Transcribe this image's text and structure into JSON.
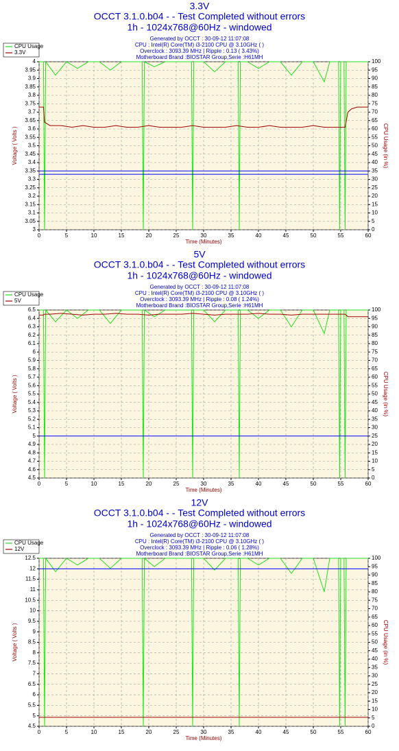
{
  "chart_data": [
    {
      "type": "line",
      "heading": "3.3V",
      "title": "OCCT 3.1.0.b04 -  - Test Completed without errors",
      "subtitle": "1h - 1024x768@60Hz - windowed",
      "info": [
        "Generated by OCCT : 30-09-12 11:07:08",
        "CPU : Intel(R) Core(TM) i3-2100 CPU @ 3.10GHz (  )",
        "Overclock : 3093.39 MHz | Ripple : 0.13 ( 3.43%)",
        "Motherboard Brand :BIOSTAR Group,Serie :H61MH"
      ],
      "xlabel": "Time (Minutes)",
      "ylabel": "Voltage ( Volts )",
      "y2label": "CPU Usage (in %)",
      "xlim": [
        0,
        60
      ],
      "xticks": [
        0,
        5,
        10,
        15,
        20,
        25,
        30,
        35,
        40,
        45,
        50,
        55,
        60
      ],
      "ylim": [
        3,
        4
      ],
      "yticks": [
        3,
        3.05,
        3.1,
        3.15,
        3.2,
        3.25,
        3.3,
        3.35,
        3.4,
        3.45,
        3.5,
        3.55,
        3.6,
        3.65,
        3.7,
        3.75,
        3.8,
        3.85,
        3.9,
        3.95,
        4
      ],
      "y2lim": [
        0,
        100
      ],
      "y2ticks": [
        0,
        5,
        10,
        15,
        20,
        25,
        30,
        35,
        40,
        45,
        50,
        55,
        60,
        65,
        70,
        75,
        80,
        85,
        90,
        95,
        100
      ],
      "grid": true,
      "hlines": [
        3.35,
        3.33
      ],
      "hline_color": "#0000ff",
      "series": [
        {
          "name": "CPU Usage",
          "color": "#22e022",
          "axis": "y2",
          "x": [
            0,
            0.8,
            1,
            1.2,
            3,
            5,
            7,
            9,
            11,
            13,
            15,
            17,
            18.8,
            19,
            19.2,
            21,
            23,
            25,
            27.8,
            28,
            28.2,
            30,
            32,
            34,
            36.3,
            36.5,
            36.7,
            38,
            40,
            42,
            44,
            46,
            48,
            50,
            52,
            53,
            54.6,
            54.8,
            55,
            55.6,
            55.8,
            56,
            56.2,
            58,
            60
          ],
          "values": [
            100,
            100,
            0,
            100,
            92,
            100,
            96,
            100,
            100,
            95,
            100,
            100,
            100,
            0,
            100,
            97,
            100,
            100,
            100,
            0,
            100,
            100,
            94,
            100,
            100,
            0,
            100,
            100,
            96,
            100,
            100,
            92,
            100,
            100,
            88,
            100,
            100,
            0,
            100,
            100,
            0,
            100,
            100,
            100,
            100
          ]
        },
        {
          "name": "3.3V",
          "color": "#a00000",
          "x": [
            0,
            0.8,
            1,
            2,
            4,
            6,
            8,
            10,
            12,
            14,
            16,
            18,
            20,
            22,
            24,
            26,
            28,
            30,
            32,
            34,
            36,
            38,
            40,
            42,
            44,
            46,
            48,
            50,
            52,
            54,
            55.8,
            56.3,
            57,
            58,
            60
          ],
          "values": [
            3.73,
            3.73,
            3.64,
            3.62,
            3.62,
            3.61,
            3.62,
            3.61,
            3.61,
            3.62,
            3.61,
            3.61,
            3.62,
            3.61,
            3.61,
            3.61,
            3.62,
            3.61,
            3.61,
            3.61,
            3.62,
            3.61,
            3.61,
            3.62,
            3.61,
            3.61,
            3.61,
            3.62,
            3.61,
            3.61,
            3.61,
            3.7,
            3.72,
            3.73,
            3.73
          ]
        }
      ]
    },
    {
      "type": "line",
      "heading": "5V",
      "title": "OCCT 3.1.0.b04 -  - Test Completed without errors",
      "subtitle": "1h - 1024x768@60Hz - windowed",
      "info": [
        "Generated by OCCT : 30-09-12 11:07:08",
        "CPU : Intel(R) Core(TM) i3-2100 CPU @ 3.10GHz (  )",
        "Overclock : 3093.39 MHz | Ripple : 0.08 ( 1.24%)",
        "Motherboard Brand :BIOSTAR Group,Serie :H61MH"
      ],
      "xlabel": "Time (Minutes)",
      "ylabel": "Voltage ( Volts )",
      "y2label": "CPU Usage (in %)",
      "xlim": [
        0,
        60
      ],
      "xticks": [
        0,
        5,
        10,
        15,
        20,
        25,
        30,
        35,
        40,
        45,
        50,
        55,
        60
      ],
      "ylim": [
        4.5,
        6.5
      ],
      "yticks": [
        4.5,
        4.6,
        4.7,
        4.8,
        4.9,
        5,
        5.1,
        5.2,
        5.3,
        5.4,
        5.5,
        5.6,
        5.7,
        5.8,
        5.9,
        6,
        6.1,
        6.2,
        6.3,
        6.4,
        6.5
      ],
      "y2lim": [
        0,
        100
      ],
      "y2ticks": [
        0,
        5,
        10,
        15,
        20,
        25,
        30,
        35,
        40,
        45,
        50,
        55,
        60,
        65,
        70,
        75,
        80,
        85,
        90,
        95,
        100
      ],
      "grid": true,
      "hlines": [
        5
      ],
      "hline_color": "#0000ff",
      "series": [
        {
          "name": "CPU Usage",
          "color": "#22e022",
          "axis": "y2",
          "x": [
            0,
            0.8,
            1,
            1.2,
            3,
            5,
            7,
            9,
            11,
            13,
            15,
            17,
            18.8,
            19,
            19.2,
            21,
            23,
            25,
            27.8,
            28,
            28.2,
            30,
            32,
            34,
            36.3,
            36.5,
            36.7,
            38,
            40,
            42,
            44,
            46,
            48,
            50,
            52,
            53,
            54.6,
            54.8,
            55,
            55.6,
            55.8,
            56,
            56.2,
            58,
            60
          ],
          "values": [
            100,
            100,
            0,
            100,
            93,
            100,
            95,
            100,
            100,
            92,
            100,
            100,
            100,
            0,
            100,
            96,
            100,
            100,
            100,
            0,
            100,
            100,
            93,
            100,
            100,
            0,
            100,
            100,
            95,
            100,
            100,
            90,
            100,
            100,
            86,
            100,
            100,
            0,
            100,
            100,
            0,
            100,
            100,
            100,
            100
          ]
        },
        {
          "name": "5V",
          "color": "#a00000",
          "x": [
            0,
            0.8,
            1,
            2,
            4,
            6,
            8,
            10,
            12,
            14,
            16,
            18,
            20,
            22,
            24,
            26,
            28,
            30,
            32,
            34,
            36,
            38,
            40,
            42,
            44,
            46,
            48,
            50,
            52,
            54,
            55.8,
            56.3,
            57,
            58,
            60
          ],
          "values": [
            6.44,
            6.44,
            6.45,
            6.45,
            6.46,
            6.45,
            6.44,
            6.45,
            6.45,
            6.46,
            6.45,
            6.45,
            6.44,
            6.45,
            6.45,
            6.45,
            6.46,
            6.45,
            6.44,
            6.45,
            6.45,
            6.45,
            6.46,
            6.45,
            6.45,
            6.44,
            6.45,
            6.45,
            6.45,
            6.45,
            6.45,
            6.42,
            6.42,
            6.42,
            6.42
          ]
        }
      ]
    },
    {
      "type": "line",
      "heading": "12V",
      "title": "OCCT 3.1.0.b04 -  - Test Completed without errors",
      "subtitle": "1h - 1024x768@60Hz - windowed",
      "info": [
        "Generated by OCCT : 30-09-12 11:07:08",
        "CPU : Intel(R) Core(TM) i3-2100 CPU @ 3.10GHz (  )",
        "Overclock : 3093.39 MHz | Ripple : 0.06 ( 1.28%)",
        "Motherboard Brand :BIOSTAR Group,Serie :H61MH"
      ],
      "xlabel": "Time (Minutes)",
      "ylabel": "Voltage ( Volts )",
      "y2label": "CPU Usage (in %)",
      "xlim": [
        0,
        60
      ],
      "xticks": [
        0,
        5,
        10,
        15,
        20,
        25,
        30,
        35,
        40,
        45,
        50,
        55,
        60
      ],
      "ylim": [
        4.5,
        12.5
      ],
      "yticks": [
        4.5,
        5,
        5.5,
        6,
        6.5,
        7,
        7.5,
        8,
        8.5,
        9,
        9.5,
        10,
        10.5,
        11,
        11.5,
        12,
        12.5
      ],
      "y2lim": [
        0,
        100
      ],
      "y2ticks": [
        0,
        5,
        10,
        15,
        20,
        25,
        30,
        35,
        40,
        45,
        50,
        55,
        60,
        65,
        70,
        75,
        80,
        85,
        90,
        95,
        100
      ],
      "grid": true,
      "hlines": [
        12
      ],
      "hline_color": "#0000ff",
      "series": [
        {
          "name": "CPU Usage",
          "color": "#22e022",
          "axis": "y2",
          "x": [
            0,
            0.8,
            1,
            1.2,
            3,
            5,
            7,
            9,
            11,
            13,
            15,
            17,
            18.8,
            19,
            19.2,
            21,
            23,
            25,
            27.8,
            28,
            28.2,
            30,
            32,
            34,
            36.3,
            36.5,
            36.7,
            38,
            40,
            42,
            44,
            46,
            48,
            50,
            52,
            53,
            54.6,
            54.8,
            55,
            55.6,
            55.8,
            56,
            56.2,
            58,
            60
          ],
          "values": [
            100,
            100,
            0,
            100,
            92,
            100,
            96,
            100,
            100,
            94,
            100,
            100,
            100,
            0,
            100,
            95,
            100,
            100,
            100,
            0,
            100,
            100,
            93,
            100,
            100,
            0,
            100,
            100,
            96,
            100,
            100,
            91,
            100,
            100,
            80,
            100,
            100,
            0,
            100,
            100,
            0,
            100,
            100,
            100,
            100
          ]
        },
        {
          "name": "12V",
          "color": "#a00000",
          "x": [
            0,
            0.8,
            1,
            2,
            4,
            6,
            8,
            10,
            12,
            14,
            16,
            18,
            20,
            22,
            24,
            26,
            28,
            30,
            32,
            34,
            36,
            38,
            40,
            42,
            44,
            46,
            48,
            50,
            52,
            54,
            55.8,
            56.3,
            57,
            58,
            60
          ],
          "values": [
            4.93,
            4.93,
            4.93,
            4.93,
            4.93,
            4.93,
            4.93,
            4.93,
            4.93,
            4.93,
            4.93,
            4.93,
            4.93,
            4.93,
            4.93,
            4.93,
            4.93,
            4.93,
            4.93,
            4.93,
            4.93,
            4.93,
            4.93,
            4.93,
            4.93,
            4.93,
            4.93,
            4.93,
            4.93,
            4.93,
            4.93,
            4.93,
            4.93,
            4.93,
            4.93
          ]
        }
      ]
    }
  ]
}
